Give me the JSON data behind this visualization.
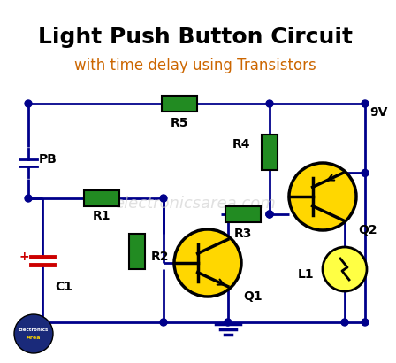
{
  "title": "Light Push Button Circuit",
  "subtitle": "with time delay using Transistors",
  "bg_color": "#ffffff",
  "title_color": "#000000",
  "subtitle_color": "#cc6600",
  "wire_color": "#00008B",
  "component_fill": "#228B22",
  "transistor_fill": "#FFD700",
  "dot_color": "#00008B",
  "ground_color": "#00008B",
  "watermark": "electronicsarea.com",
  "watermark_color": "#d0d0d0",
  "label_9v": "9V",
  "label_pb": "PB",
  "label_r1": "R1",
  "label_r2": "R2",
  "label_r3": "R3",
  "label_r4": "R4",
  "label_r5": "R5",
  "label_q1": "Q1",
  "label_q2": "Q2",
  "label_c1": "C1",
  "label_l1": "L1",
  "logo_bg": "#1a2a7a",
  "logo_text1": "Electronics",
  "logo_text2": "Area"
}
